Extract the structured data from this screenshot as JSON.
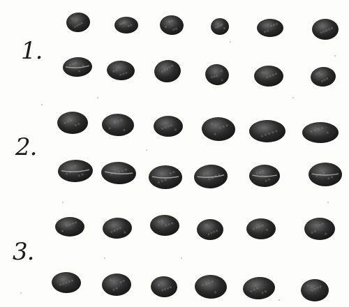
{
  "plate": {
    "ink_color": "#262626",
    "paper_color": "#fdfdfc",
    "bean_color": "#2b2b2b",
    "bean_highlight": "#6a6a6a"
  },
  "groups": [
    {
      "label": "1.",
      "rows": 2,
      "beans_per_row": 6
    },
    {
      "label": "2.",
      "rows": 2,
      "beans_per_row": 6
    },
    {
      "label": "3.",
      "rows": 2,
      "beans_per_row": 6
    }
  ]
}
